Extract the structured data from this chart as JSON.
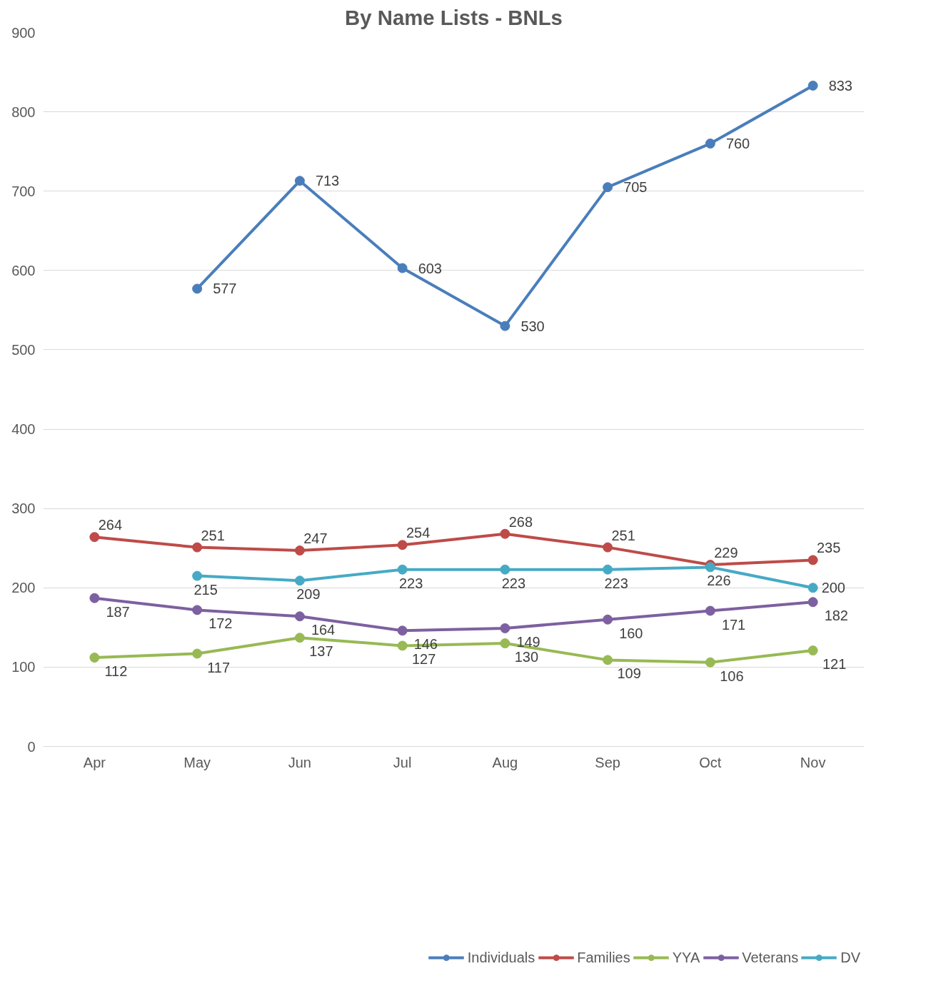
{
  "chart_data": {
    "type": "line",
    "title": "By Name Lists - BNLs",
    "categories": [
      "Apr",
      "May",
      "Jun",
      "Jul",
      "Aug",
      "Sep",
      "Oct",
      "Nov"
    ],
    "series": [
      {
        "name": "Individuals",
        "color": "#4a7ebb",
        "values": [
          null,
          577,
          713,
          603,
          530,
          705,
          760,
          833
        ]
      },
      {
        "name": "Families",
        "color": "#be4b48",
        "values": [
          264,
          251,
          247,
          254,
          268,
          251,
          229,
          235
        ]
      },
      {
        "name": "YYA",
        "color": "#98b954",
        "values": [
          112,
          117,
          137,
          127,
          130,
          109,
          106,
          121
        ]
      },
      {
        "name": "Veterans",
        "color": "#7d60a0",
        "values": [
          187,
          172,
          164,
          146,
          149,
          160,
          171,
          182
        ]
      },
      {
        "name": "DV",
        "color": "#46aac5",
        "values": [
          null,
          215,
          209,
          223,
          223,
          223,
          226,
          200
        ]
      }
    ],
    "ylim": [
      0,
      900
    ],
    "yticks": [
      0,
      100,
      200,
      300,
      400,
      500,
      600,
      700,
      800,
      900
    ],
    "grid": "y",
    "legend": "bottom",
    "marker": "circle",
    "line_style": "solid",
    "data_labels": true
  }
}
